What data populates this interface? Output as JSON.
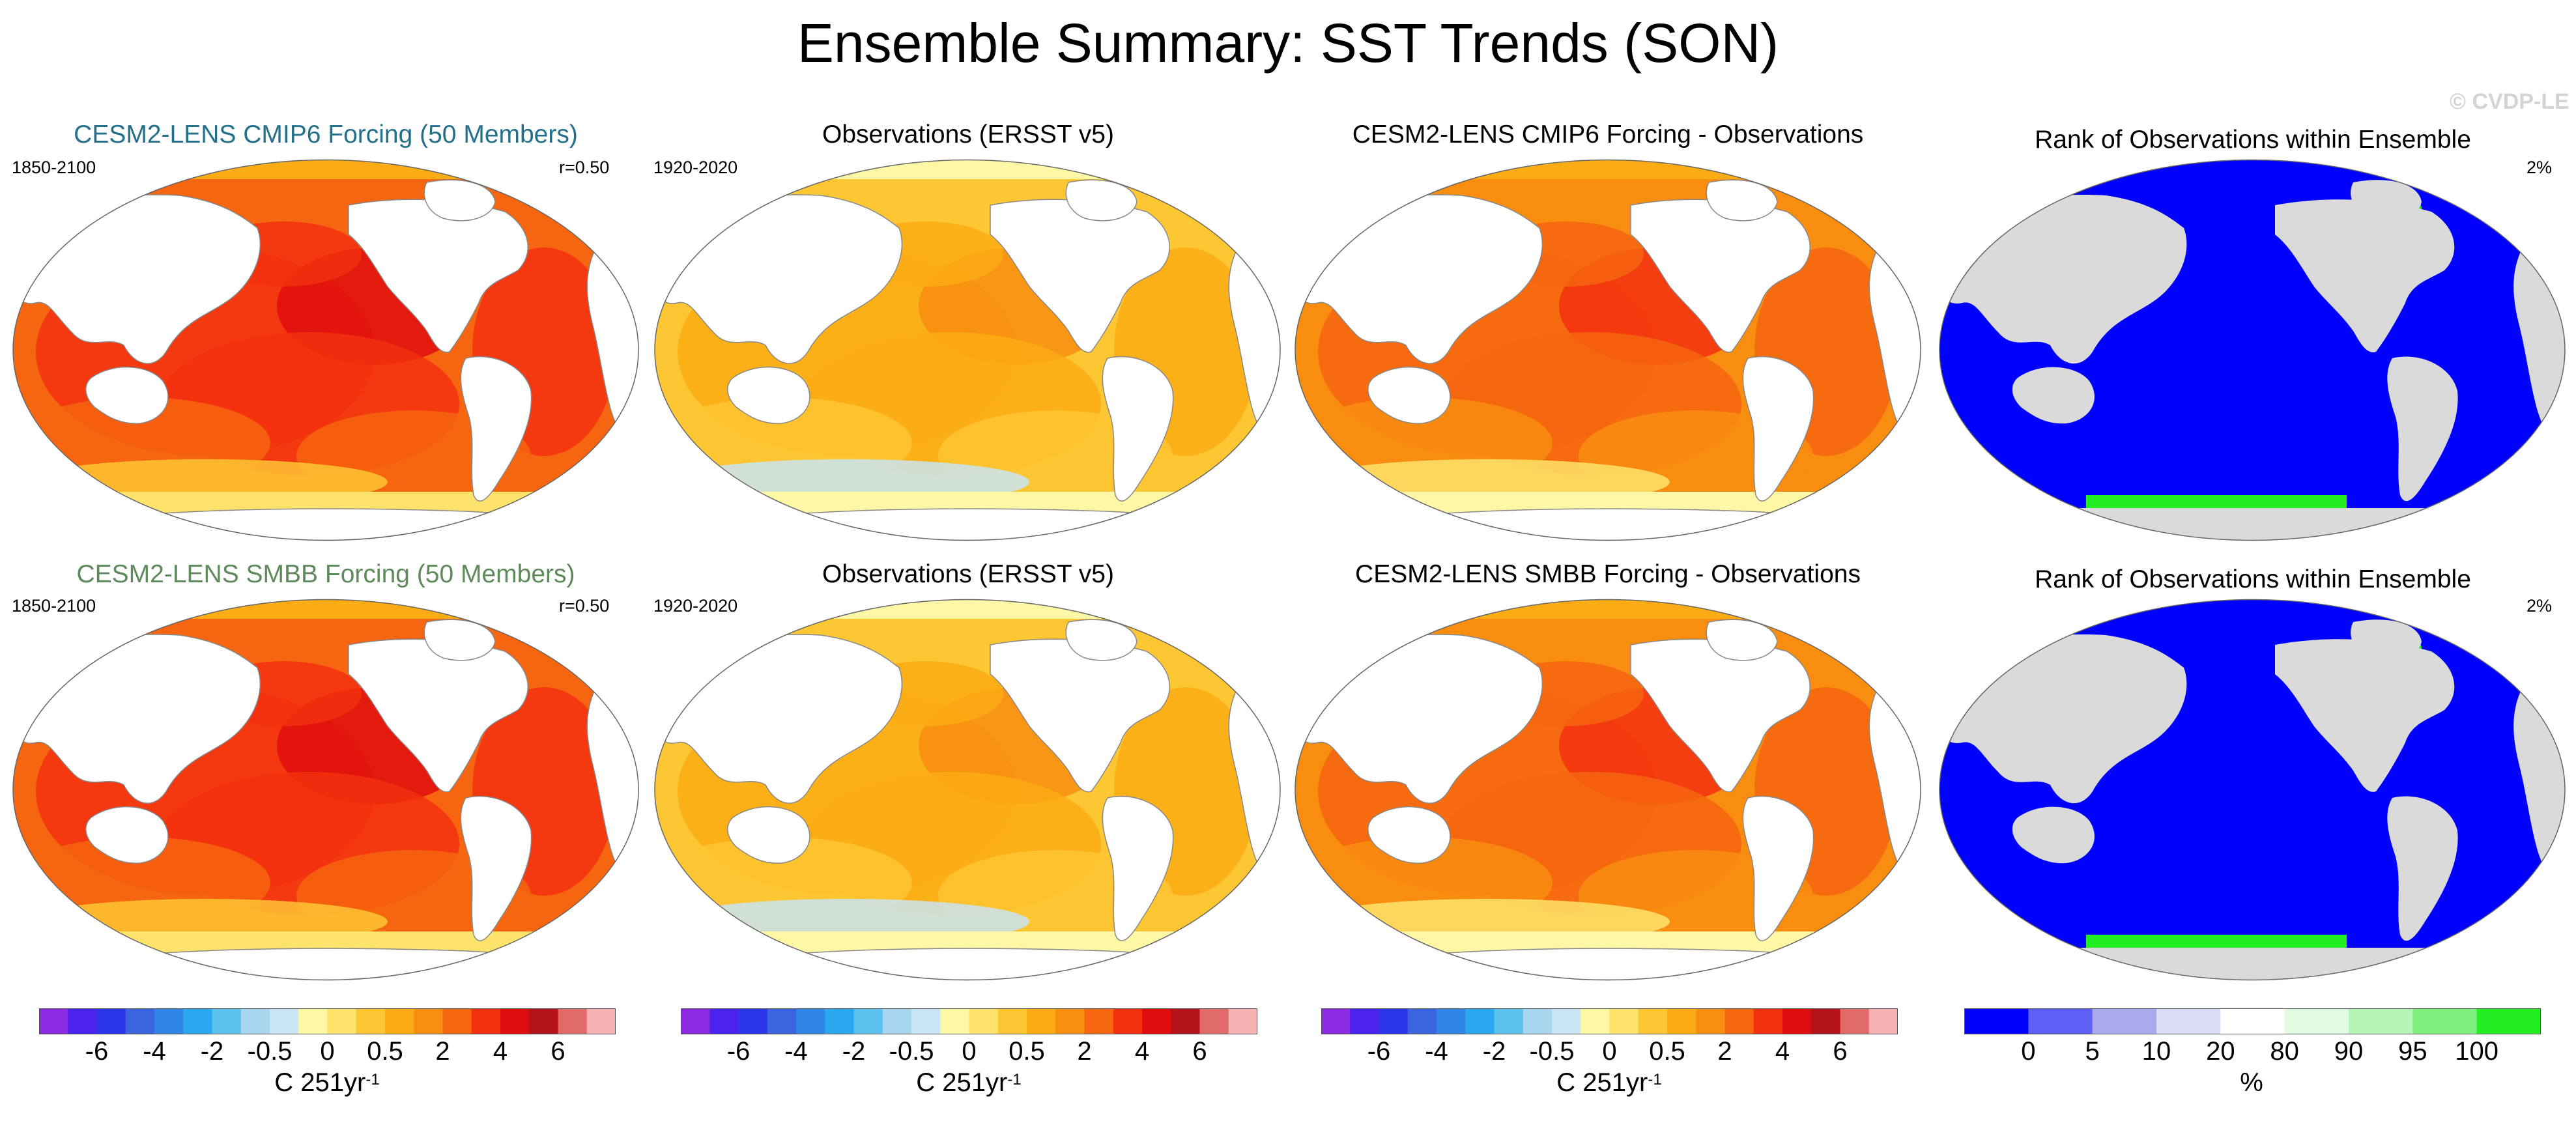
{
  "title": "Ensemble Summary: SST Trends (SON)",
  "watermark": "© CVDP-LE",
  "colors": {
    "title_cmip6": "#246f8a",
    "title_smbb": "#5f8a5c",
    "land_panel": "#ffffff",
    "land_rank": "#dadada",
    "trend_scale": [
      "#8a2be2",
      "#4b21ee",
      "#2b36e8",
      "#3a64e0",
      "#2f86e6",
      "#2aa7ee",
      "#5cc0ef",
      "#a7d6ee",
      "#c9e4f2",
      "#fdf7a6",
      "#fde36b",
      "#fdc633",
      "#fbab14",
      "#f88d10",
      "#f6650f",
      "#f3300f",
      "#df0d0d",
      "#b5131a",
      "#e06a6a",
      "#f5b3b3"
    ],
    "rank_scale": [
      "#0000ff",
      "#5f5ff5",
      "#a9a9ef",
      "#dcdcf8",
      "#ffffff",
      "#e1fbe1",
      "#b5f5b5",
      "#7ef07e",
      "#22ee22"
    ]
  },
  "rows": [
    {
      "panels": [
        {
          "title": "CESM2-LENS CMIP6 Forcing (50 Members)",
          "left": "1850-2100",
          "right": "r=0.50",
          "kind": "model"
        },
        {
          "title": "Observations (ERSST v5)",
          "left": "1920-2020",
          "right": "",
          "kind": "obs"
        },
        {
          "title": "CESM2-LENS CMIP6 Forcing - Observations",
          "left": "",
          "right": "",
          "kind": "diff"
        },
        {
          "title": "Rank of Observations within Ensemble",
          "left": "",
          "right": "2%",
          "kind": "rank"
        }
      ]
    },
    {
      "panels": [
        {
          "title": "CESM2-LENS SMBB Forcing (50 Members)",
          "left": "1850-2100",
          "right": "r=0.50",
          "kind": "model"
        },
        {
          "title": "Observations (ERSST v5)",
          "left": "1920-2020",
          "right": "",
          "kind": "obs"
        },
        {
          "title": "CESM2-LENS SMBB Forcing - Observations",
          "left": "",
          "right": "",
          "kind": "diff"
        },
        {
          "title": "Rank of Observations within Ensemble",
          "left": "",
          "right": "2%",
          "kind": "rank"
        }
      ]
    }
  ],
  "colorbars": [
    {
      "ticks": [
        "-6",
        "-4",
        "-2",
        "-0.5",
        "0",
        "0.5",
        "2",
        "4",
        "6"
      ],
      "unit": "C 251yr",
      "unit_sup": "-1"
    },
    {
      "ticks": [
        "-6",
        "-4",
        "-2",
        "-0.5",
        "0",
        "0.5",
        "2",
        "4",
        "6"
      ],
      "unit": "C 251yr",
      "unit_sup": "-1"
    },
    {
      "ticks": [
        "-6",
        "-4",
        "-2",
        "-0.5",
        "0",
        "0.5",
        "2",
        "4",
        "6"
      ],
      "unit": "C 251yr",
      "unit_sup": "-1"
    },
    {
      "ticks": [
        "0",
        "5",
        "10",
        "20",
        "80",
        "90",
        "95",
        "100"
      ],
      "unit": "%",
      "unit_sup": ""
    }
  ]
}
